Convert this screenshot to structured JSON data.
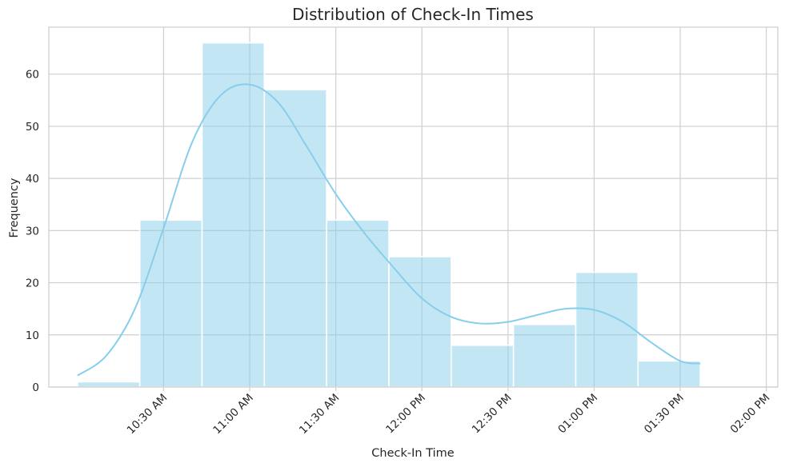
{
  "chart_data": {
    "type": "histogram",
    "title": "Distribution of Check-In Times",
    "xlabel": "Check-In Time",
    "ylabel": "Frequency",
    "ylim": [
      0,
      69
    ],
    "xlim_minutes": [
      590,
      844
    ],
    "x_ticks": [
      {
        "label": "10:30 AM",
        "minutes": 630
      },
      {
        "label": "11:00 AM",
        "minutes": 660
      },
      {
        "label": "11:30 AM",
        "minutes": 690
      },
      {
        "label": "12:00 PM",
        "minutes": 720
      },
      {
        "label": "12:30 PM",
        "minutes": 750
      },
      {
        "label": "01:00 PM",
        "minutes": 780
      },
      {
        "label": "01:30 PM",
        "minutes": 810
      },
      {
        "label": "02:00 PM",
        "minutes": 840
      }
    ],
    "y_ticks": [
      0,
      10,
      20,
      30,
      40,
      50,
      60
    ],
    "bins": [
      {
        "start": 600.0,
        "end": 621.7,
        "count": 1
      },
      {
        "start": 621.7,
        "end": 643.4,
        "count": 32
      },
      {
        "start": 643.4,
        "end": 665.1,
        "count": 66
      },
      {
        "start": 665.1,
        "end": 686.8,
        "count": 57
      },
      {
        "start": 686.8,
        "end": 708.5,
        "count": 32
      },
      {
        "start": 708.5,
        "end": 730.2,
        "count": 25
      },
      {
        "start": 730.2,
        "end": 751.9,
        "count": 8
      },
      {
        "start": 751.9,
        "end": 773.6,
        "count": 12
      },
      {
        "start": 773.6,
        "end": 795.3,
        "count": 22
      },
      {
        "start": 795.3,
        "end": 817.0,
        "count": 5
      }
    ],
    "kde": {
      "x_minutes": [
        600,
        610,
        620,
        630,
        640,
        650,
        660,
        670,
        680,
        690,
        700,
        710,
        720,
        730,
        740,
        750,
        760,
        770,
        780,
        790,
        800,
        810,
        817
      ],
      "y": [
        2.2,
        6.0,
        15.0,
        30.5,
        47.0,
        56.0,
        58.0,
        54.5,
        46.0,
        37.0,
        29.5,
        23.0,
        17.0,
        13.5,
        12.2,
        12.5,
        13.8,
        15.0,
        14.8,
        12.5,
        8.5,
        5.0,
        4.5
      ]
    },
    "bar_color": "#87ceeb",
    "grid": true
  }
}
